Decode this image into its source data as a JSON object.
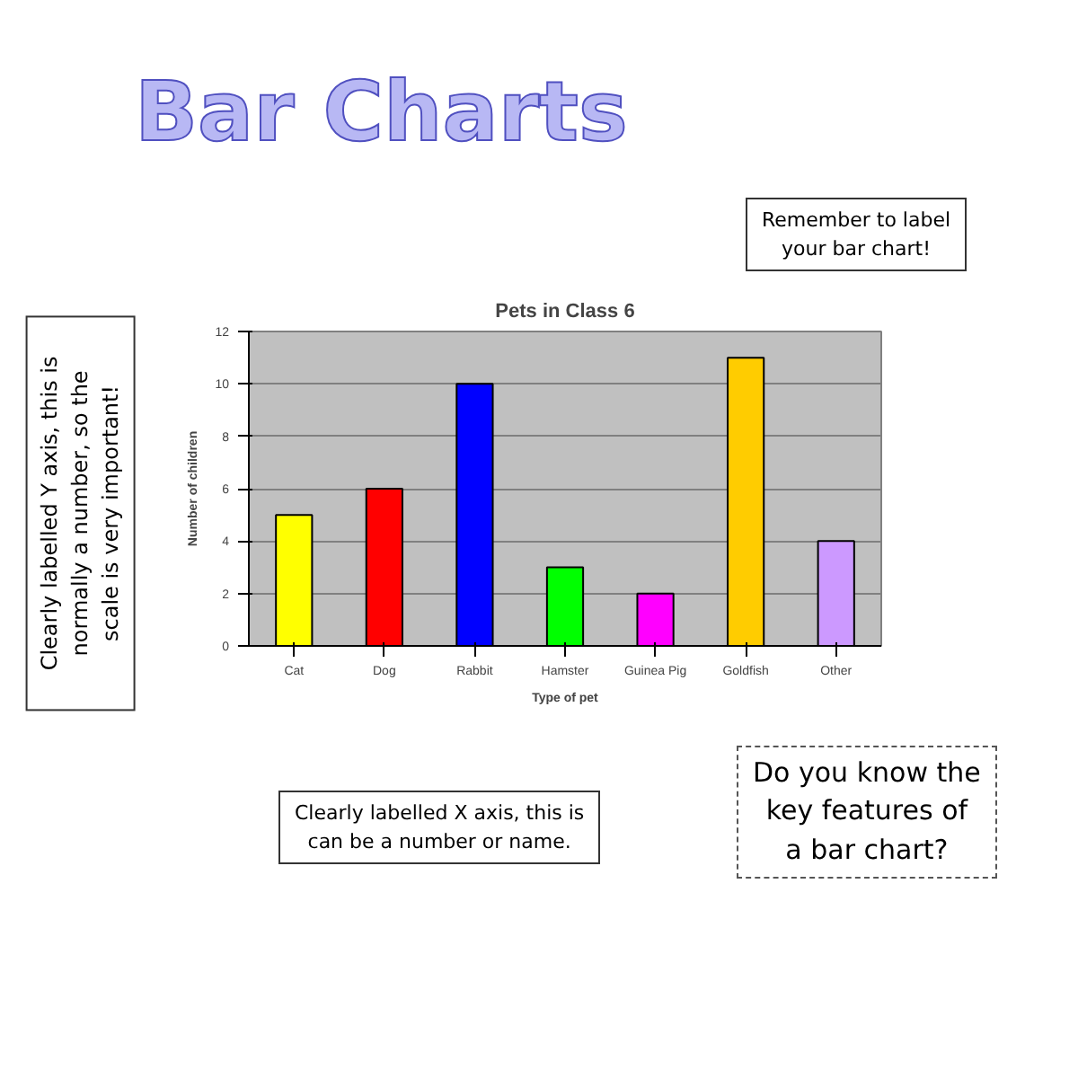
{
  "chart_data": {
    "type": "bar",
    "title": "Pets in Class 6",
    "xlabel": "Type of pet",
    "ylabel": "Number of children",
    "categories": [
      "Cat",
      "Dog",
      "Rabbit",
      "Hamster",
      "Guinea Pig",
      "Goldfish",
      "Other"
    ],
    "values": [
      5,
      6,
      10,
      3,
      2,
      11,
      4
    ],
    "colors": [
      "#ffff00",
      "#ff0000",
      "#0000ff",
      "#00ff00",
      "#ff00ff",
      "#ffcc00",
      "#cc99ff"
    ],
    "ylim": [
      0,
      12
    ],
    "yticks": [
      0,
      2,
      4,
      6,
      8,
      10,
      12
    ],
    "grid": "y",
    "annotations": [
      "Bar Charts",
      "Remember to label\nyour bar chart!",
      "Clearly labelled Y axis, this is\nnormally a number, so the\nscale is very important!",
      "Clearly labelled X axis, this is\ncan be a number or name.",
      "Do you know the\nkey features of\na bar chart?"
    ]
  }
}
